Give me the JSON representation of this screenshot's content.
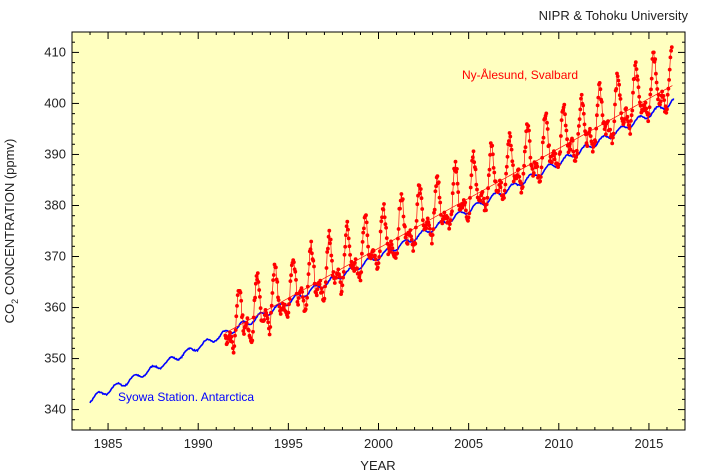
{
  "chart_data": {
    "type": "scatter",
    "credit": "NIPR & Tohoku University",
    "xlabel": "YEAR",
    "ylabel": {
      "prefix": "CO",
      "subscript": "2",
      "suffix": " CONCENTRATION (ppmv)"
    },
    "xlim": [
      1983,
      2017
    ],
    "ylim": [
      336,
      414
    ],
    "xticks": [
      1985,
      1990,
      1995,
      2000,
      2005,
      2010,
      2015
    ],
    "yticks": [
      340,
      350,
      360,
      370,
      380,
      390,
      400,
      410
    ],
    "background": "#ffffc0",
    "series": [
      {
        "name": "Syowa Station. Antarctica",
        "color": "#0000ff",
        "style": "line",
        "x_start": 1984.0,
        "x_end": 2016.4,
        "trend_start": 342.0,
        "trend_end": 400.5,
        "seasonal_amplitude": 0.6
      },
      {
        "name": "Ny-Ålesund, Svalbard",
        "color": "#ff0000",
        "style": "line+markers",
        "x_start": 1991.5,
        "x_end": 2016.3,
        "trend_start": 355.0,
        "trend_end": 403.5,
        "seasonal_amplitude": 8.0,
        "seasonal_peak_month": 4
      }
    ]
  }
}
